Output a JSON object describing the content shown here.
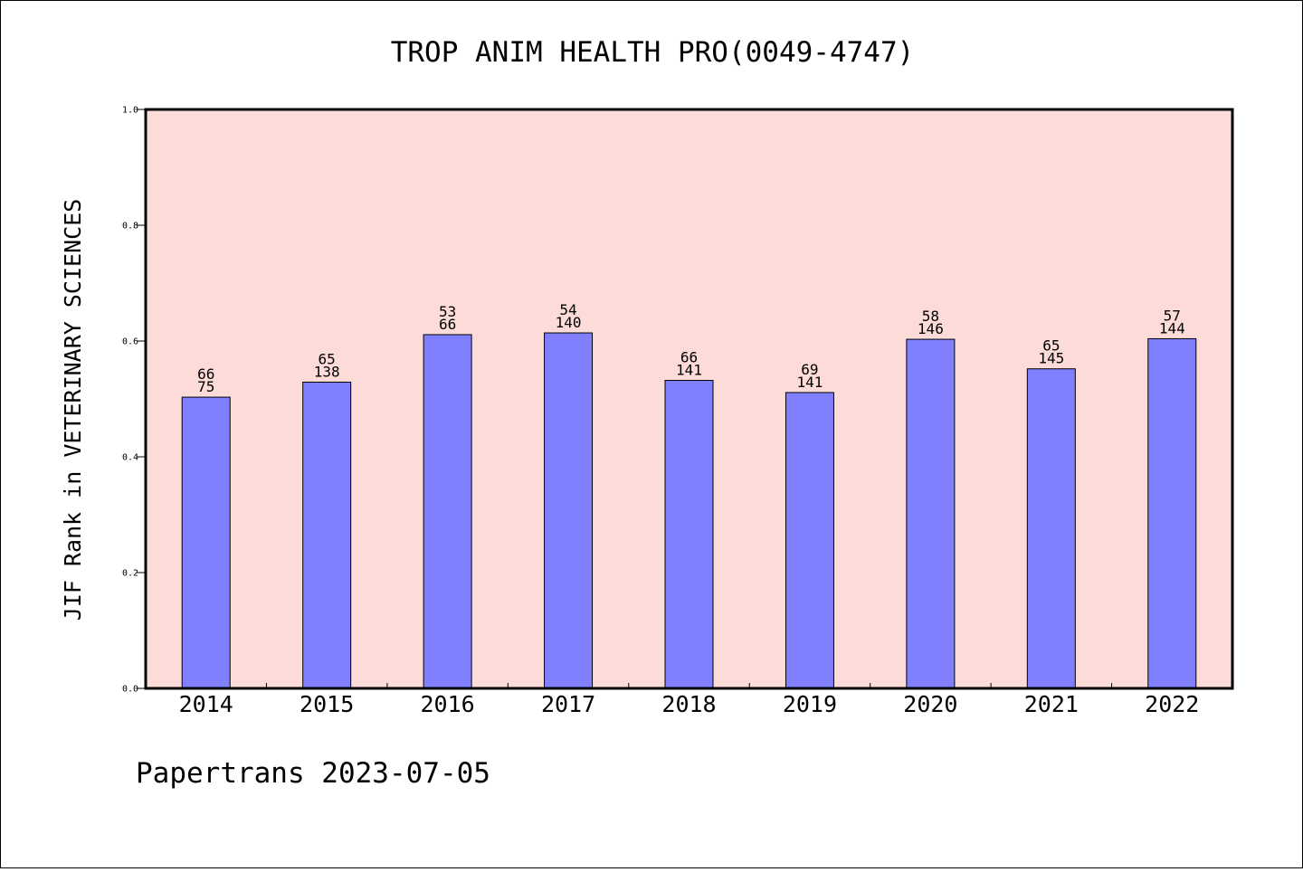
{
  "chart_data": {
    "type": "bar",
    "title": "TROP ANIM HEALTH PRO(0049-4747)",
    "xlabel": "",
    "ylabel": "JIF Rank in VETERINARY SCIENCES",
    "ylim": [
      0,
      1.0
    ],
    "yticks": [
      "0.0",
      "0.2",
      "0.4",
      "0.6",
      "0.8",
      "1.0"
    ],
    "grid": false,
    "categories": [
      "2014",
      "2015",
      "2016",
      "2017",
      "2018",
      "2019",
      "2020",
      "2021",
      "2022"
    ],
    "values": [
      0.503,
      0.529,
      0.611,
      0.614,
      0.532,
      0.511,
      0.603,
      0.552,
      0.604
    ],
    "ranks": [
      "66",
      "65",
      "53",
      "54",
      "66",
      "69",
      "58",
      "65",
      "57"
    ],
    "totals": [
      "75",
      "138",
      "66",
      "140",
      "141",
      "141",
      "146",
      "145",
      "144"
    ],
    "colors": {
      "bar_fill": "#8080ff",
      "plot_background": "#fddbd8",
      "axis": "#000000"
    }
  },
  "footer": "Papertrans 2023-07-05"
}
